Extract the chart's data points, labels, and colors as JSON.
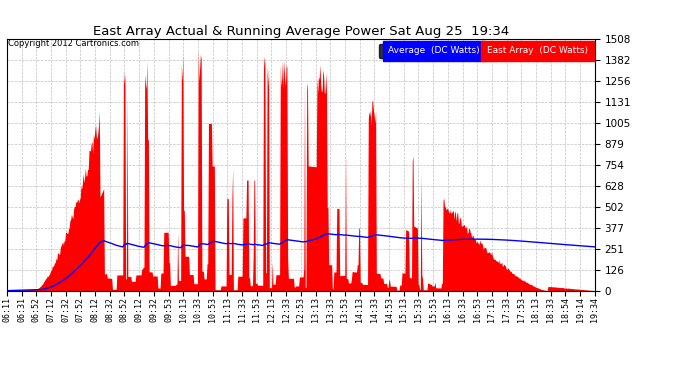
{
  "title": "East Array Actual & Running Average Power Sat Aug 25  19:34",
  "copyright": "Copyright 2012 Cartronics.com",
  "yticks": [
    0.0,
    125.6,
    251.2,
    376.9,
    502.5,
    628.1,
    753.7,
    879.4,
    1005.0,
    1130.6,
    1256.2,
    1381.9,
    1507.5
  ],
  "ylim": [
    0,
    1507.5
  ],
  "legend_labels": [
    "Average  (DC Watts)",
    "East Array  (DC Watts)"
  ],
  "legend_colors": [
    "#0000ff",
    "#ff0000"
  ],
  "background_color": "#ffffff",
  "plot_bg_color": "#ffffff",
  "grid_color": "#c0c0c0",
  "area_color": "#ff0000",
  "line_color": "#0000ff",
  "xtick_labels": [
    "06:11",
    "06:31",
    "06:52",
    "07:12",
    "07:32",
    "07:52",
    "08:12",
    "08:32",
    "08:52",
    "09:12",
    "09:32",
    "09:53",
    "10:13",
    "10:33",
    "10:53",
    "11:13",
    "11:33",
    "11:53",
    "12:13",
    "12:33",
    "12:53",
    "13:13",
    "13:33",
    "13:53",
    "14:13",
    "14:33",
    "14:53",
    "15:13",
    "15:33",
    "15:53",
    "16:13",
    "16:33",
    "16:53",
    "17:13",
    "17:33",
    "17:53",
    "18:13",
    "18:33",
    "18:54",
    "19:14",
    "19:34"
  ]
}
